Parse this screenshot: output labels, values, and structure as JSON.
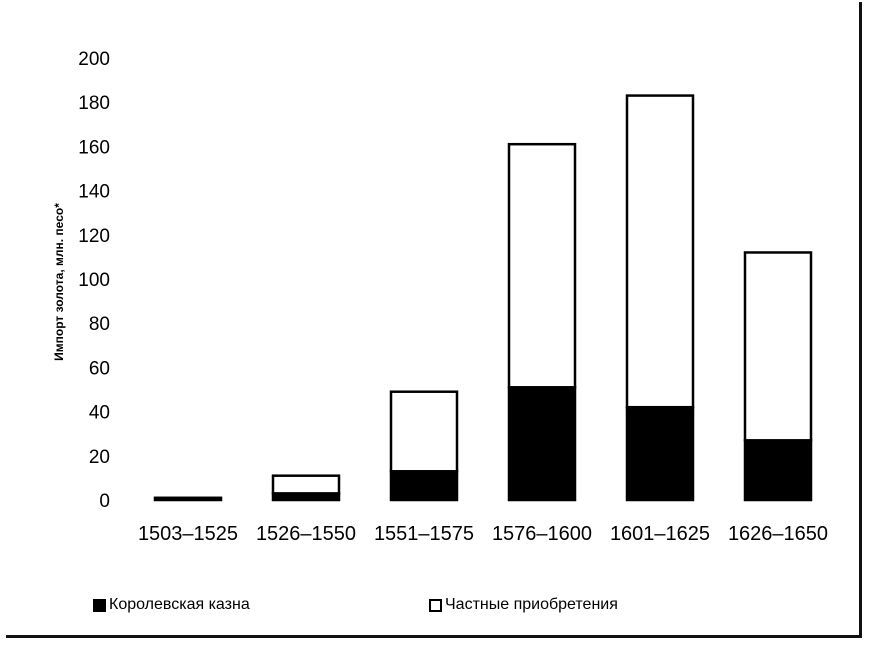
{
  "chart_data": {
    "type": "bar",
    "stacked": true,
    "ylabel": "Импорт золота, млн. песо*",
    "xlabel": "",
    "ylim": [
      0,
      200
    ],
    "yticks": [
      0,
      20,
      40,
      60,
      80,
      100,
      120,
      140,
      160,
      180,
      200
    ],
    "categories": [
      "1503–1525",
      "1526–1550",
      "1551–1575",
      "1576–1600",
      "1601–1625",
      "1626–1650"
    ],
    "series": [
      {
        "name": "Королевская казна",
        "color": "#000000",
        "values": [
          1,
          3,
          13,
          51,
          42,
          27
        ]
      },
      {
        "name": "Частные приобретения",
        "color": "#ffffff",
        "values": [
          0,
          8,
          36,
          110,
          141,
          85
        ]
      }
    ],
    "grid": false,
    "legend_position": "bottom"
  }
}
